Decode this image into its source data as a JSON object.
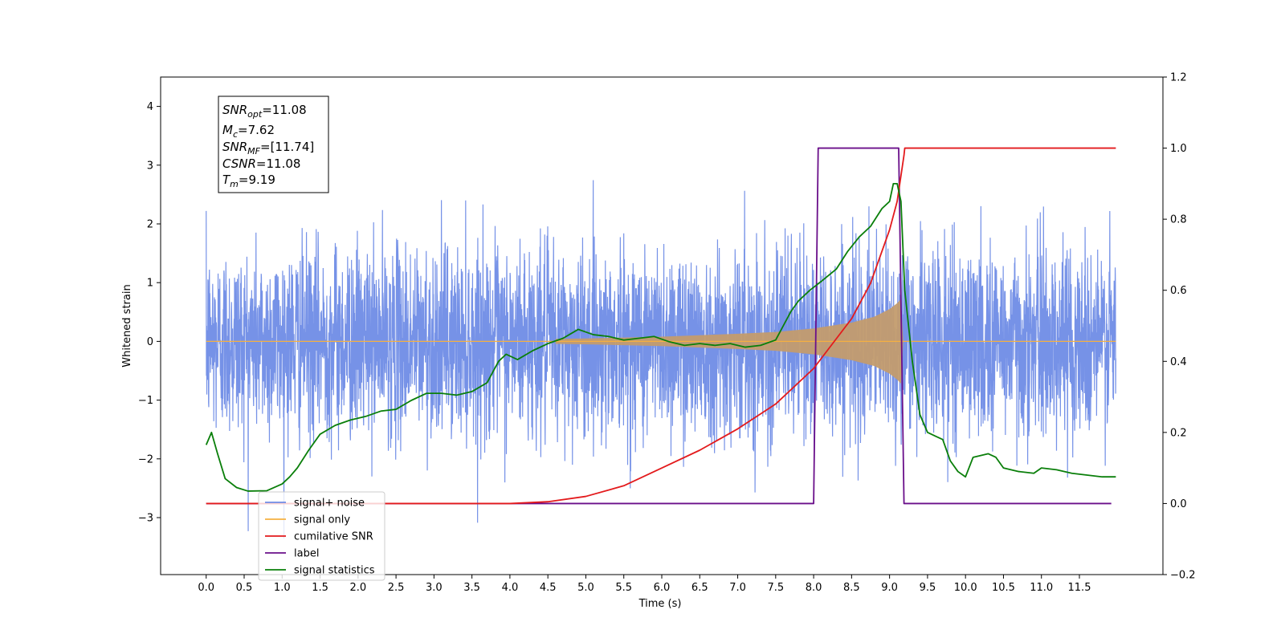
{
  "chart_data": {
    "type": "line",
    "xlabel": "Time (s)",
    "ylabel": "Whitened strain",
    "xlim": [
      -0.6,
      12.6
    ],
    "ylim": [
      -3.97,
      4.5
    ],
    "y2lim": [
      -0.2,
      1.2
    ],
    "x_ticks": [
      "0.0",
      "0.5",
      "1.0",
      "1.5",
      "2.0",
      "2.5",
      "3.0",
      "3.5",
      "4.0",
      "4.5",
      "5.0",
      "5.5",
      "6.0",
      "6.5",
      "7.0",
      "7.5",
      "8.0",
      "8.5",
      "9.0",
      "9.5",
      "10.0",
      "10.5",
      "11.0",
      "11.5"
    ],
    "y_ticks": [
      "−3",
      "−2",
      "−1",
      "0",
      "1",
      "2",
      "3",
      "4"
    ],
    "y2_ticks": [
      "−0.2",
      "0.0",
      "0.2",
      "0.4",
      "0.6",
      "0.8",
      "1.0",
      "1.2"
    ],
    "annotation": {
      "snr_opt": {
        "main": "SNR",
        "sub": "opt",
        "value": "=11.08"
      },
      "mc": {
        "main": "M",
        "sub": "c",
        "value": "=7.62"
      },
      "snr_mf": {
        "main": "SNR",
        "sub": "MF",
        "value": "=[11.74]"
      },
      "csnr": {
        "main": "CSNR",
        "value": "=11.08"
      },
      "tm": {
        "main": "T",
        "sub": "m",
        "value": "=9.19"
      }
    },
    "legend_position": "lower-left",
    "series": [
      {
        "name": "signal+ noise",
        "color": "#6f8ce6",
        "axis": "left",
        "noise_std": 0.8,
        "x_range": [
          0.0,
          11.98
        ]
      },
      {
        "name": "signal only",
        "color": "#f5b041",
        "axis": "left",
        "envelope": [
          [
            0.0,
            0.0
          ],
          [
            2.0,
            0.01
          ],
          [
            4.0,
            0.03
          ],
          [
            5.0,
            0.05
          ],
          [
            6.0,
            0.08
          ],
          [
            7.0,
            0.13
          ],
          [
            7.5,
            0.16
          ],
          [
            8.0,
            0.22
          ],
          [
            8.5,
            0.32
          ],
          [
            8.8,
            0.42
          ],
          [
            9.0,
            0.55
          ],
          [
            9.1,
            0.65
          ],
          [
            9.15,
            0.72
          ],
          [
            9.18,
            0.0
          ],
          [
            11.98,
            0.0
          ]
        ]
      },
      {
        "name": "cumilative SNR",
        "color": "#e31a1c",
        "axis": "right",
        "points": [
          [
            0.0,
            0.0
          ],
          [
            4.0,
            0.0
          ],
          [
            4.5,
            0.005
          ],
          [
            5.0,
            0.02
          ],
          [
            5.5,
            0.05
          ],
          [
            6.0,
            0.1
          ],
          [
            6.5,
            0.15
          ],
          [
            7.0,
            0.21
          ],
          [
            7.5,
            0.28
          ],
          [
            8.0,
            0.38
          ],
          [
            8.5,
            0.52
          ],
          [
            8.75,
            0.62
          ],
          [
            9.0,
            0.77
          ],
          [
            9.1,
            0.85
          ],
          [
            9.19,
            0.98
          ],
          [
            9.2,
            1.0
          ],
          [
            11.98,
            1.0
          ]
        ]
      },
      {
        "name": "label",
        "color": "#6a0f8a",
        "axis": "right",
        "points": [
          [
            0.0,
            0.0
          ],
          [
            8.0,
            0.0
          ],
          [
            8.06,
            1.0
          ],
          [
            9.12,
            1.0
          ],
          [
            9.19,
            0.0
          ],
          [
            11.92,
            0.0
          ]
        ]
      },
      {
        "name": "signal statistics",
        "color": "#0a7f0a",
        "axis": "right",
        "points": [
          [
            0.0,
            0.165
          ],
          [
            0.07,
            0.2
          ],
          [
            0.15,
            0.14
          ],
          [
            0.25,
            0.07
          ],
          [
            0.4,
            0.045
          ],
          [
            0.55,
            0.035
          ],
          [
            0.8,
            0.036
          ],
          [
            1.0,
            0.055
          ],
          [
            1.1,
            0.075
          ],
          [
            1.2,
            0.1
          ],
          [
            1.35,
            0.15
          ],
          [
            1.5,
            0.195
          ],
          [
            1.7,
            0.22
          ],
          [
            1.9,
            0.235
          ],
          [
            2.1,
            0.245
          ],
          [
            2.3,
            0.26
          ],
          [
            2.5,
            0.265
          ],
          [
            2.7,
            0.29
          ],
          [
            2.9,
            0.31
          ],
          [
            3.1,
            0.31
          ],
          [
            3.3,
            0.305
          ],
          [
            3.5,
            0.315
          ],
          [
            3.7,
            0.34
          ],
          [
            3.85,
            0.4
          ],
          [
            3.95,
            0.42
          ],
          [
            4.1,
            0.405
          ],
          [
            4.3,
            0.43
          ],
          [
            4.5,
            0.45
          ],
          [
            4.7,
            0.465
          ],
          [
            4.9,
            0.49
          ],
          [
            5.1,
            0.475
          ],
          [
            5.3,
            0.47
          ],
          [
            5.5,
            0.46
          ],
          [
            5.7,
            0.465
          ],
          [
            5.9,
            0.47
          ],
          [
            6.1,
            0.455
          ],
          [
            6.3,
            0.445
          ],
          [
            6.5,
            0.45
          ],
          [
            6.7,
            0.445
          ],
          [
            6.9,
            0.45
          ],
          [
            7.1,
            0.44
          ],
          [
            7.3,
            0.445
          ],
          [
            7.5,
            0.46
          ],
          [
            7.6,
            0.5
          ],
          [
            7.7,
            0.54
          ],
          [
            7.8,
            0.57
          ],
          [
            7.95,
            0.6
          ],
          [
            8.1,
            0.625
          ],
          [
            8.3,
            0.66
          ],
          [
            8.45,
            0.71
          ],
          [
            8.6,
            0.75
          ],
          [
            8.75,
            0.78
          ],
          [
            8.9,
            0.83
          ],
          [
            9.0,
            0.85
          ],
          [
            9.05,
            0.9
          ],
          [
            9.1,
            0.9
          ],
          [
            9.15,
            0.85
          ],
          [
            9.2,
            0.6
          ],
          [
            9.3,
            0.4
          ],
          [
            9.4,
            0.25
          ],
          [
            9.5,
            0.2
          ],
          [
            9.6,
            0.19
          ],
          [
            9.7,
            0.18
          ],
          [
            9.8,
            0.12
          ],
          [
            9.9,
            0.09
          ],
          [
            10.0,
            0.075
          ],
          [
            10.1,
            0.13
          ],
          [
            10.3,
            0.14
          ],
          [
            10.4,
            0.13
          ],
          [
            10.5,
            0.1
          ],
          [
            10.7,
            0.09
          ],
          [
            10.9,
            0.085
          ],
          [
            11.0,
            0.1
          ],
          [
            11.2,
            0.095
          ],
          [
            11.4,
            0.085
          ],
          [
            11.6,
            0.08
          ],
          [
            11.8,
            0.075
          ],
          [
            11.98,
            0.075
          ]
        ]
      }
    ],
    "legend": [
      {
        "label": "signal+ noise",
        "color": "#6f8ce6"
      },
      {
        "label": "signal only",
        "color": "#f5b041"
      },
      {
        "label": "cumilative SNR",
        "color": "#e31a1c"
      },
      {
        "label": "label",
        "color": "#6a0f8a"
      },
      {
        "label": "signal statistics",
        "color": "#0a7f0a"
      }
    ]
  }
}
